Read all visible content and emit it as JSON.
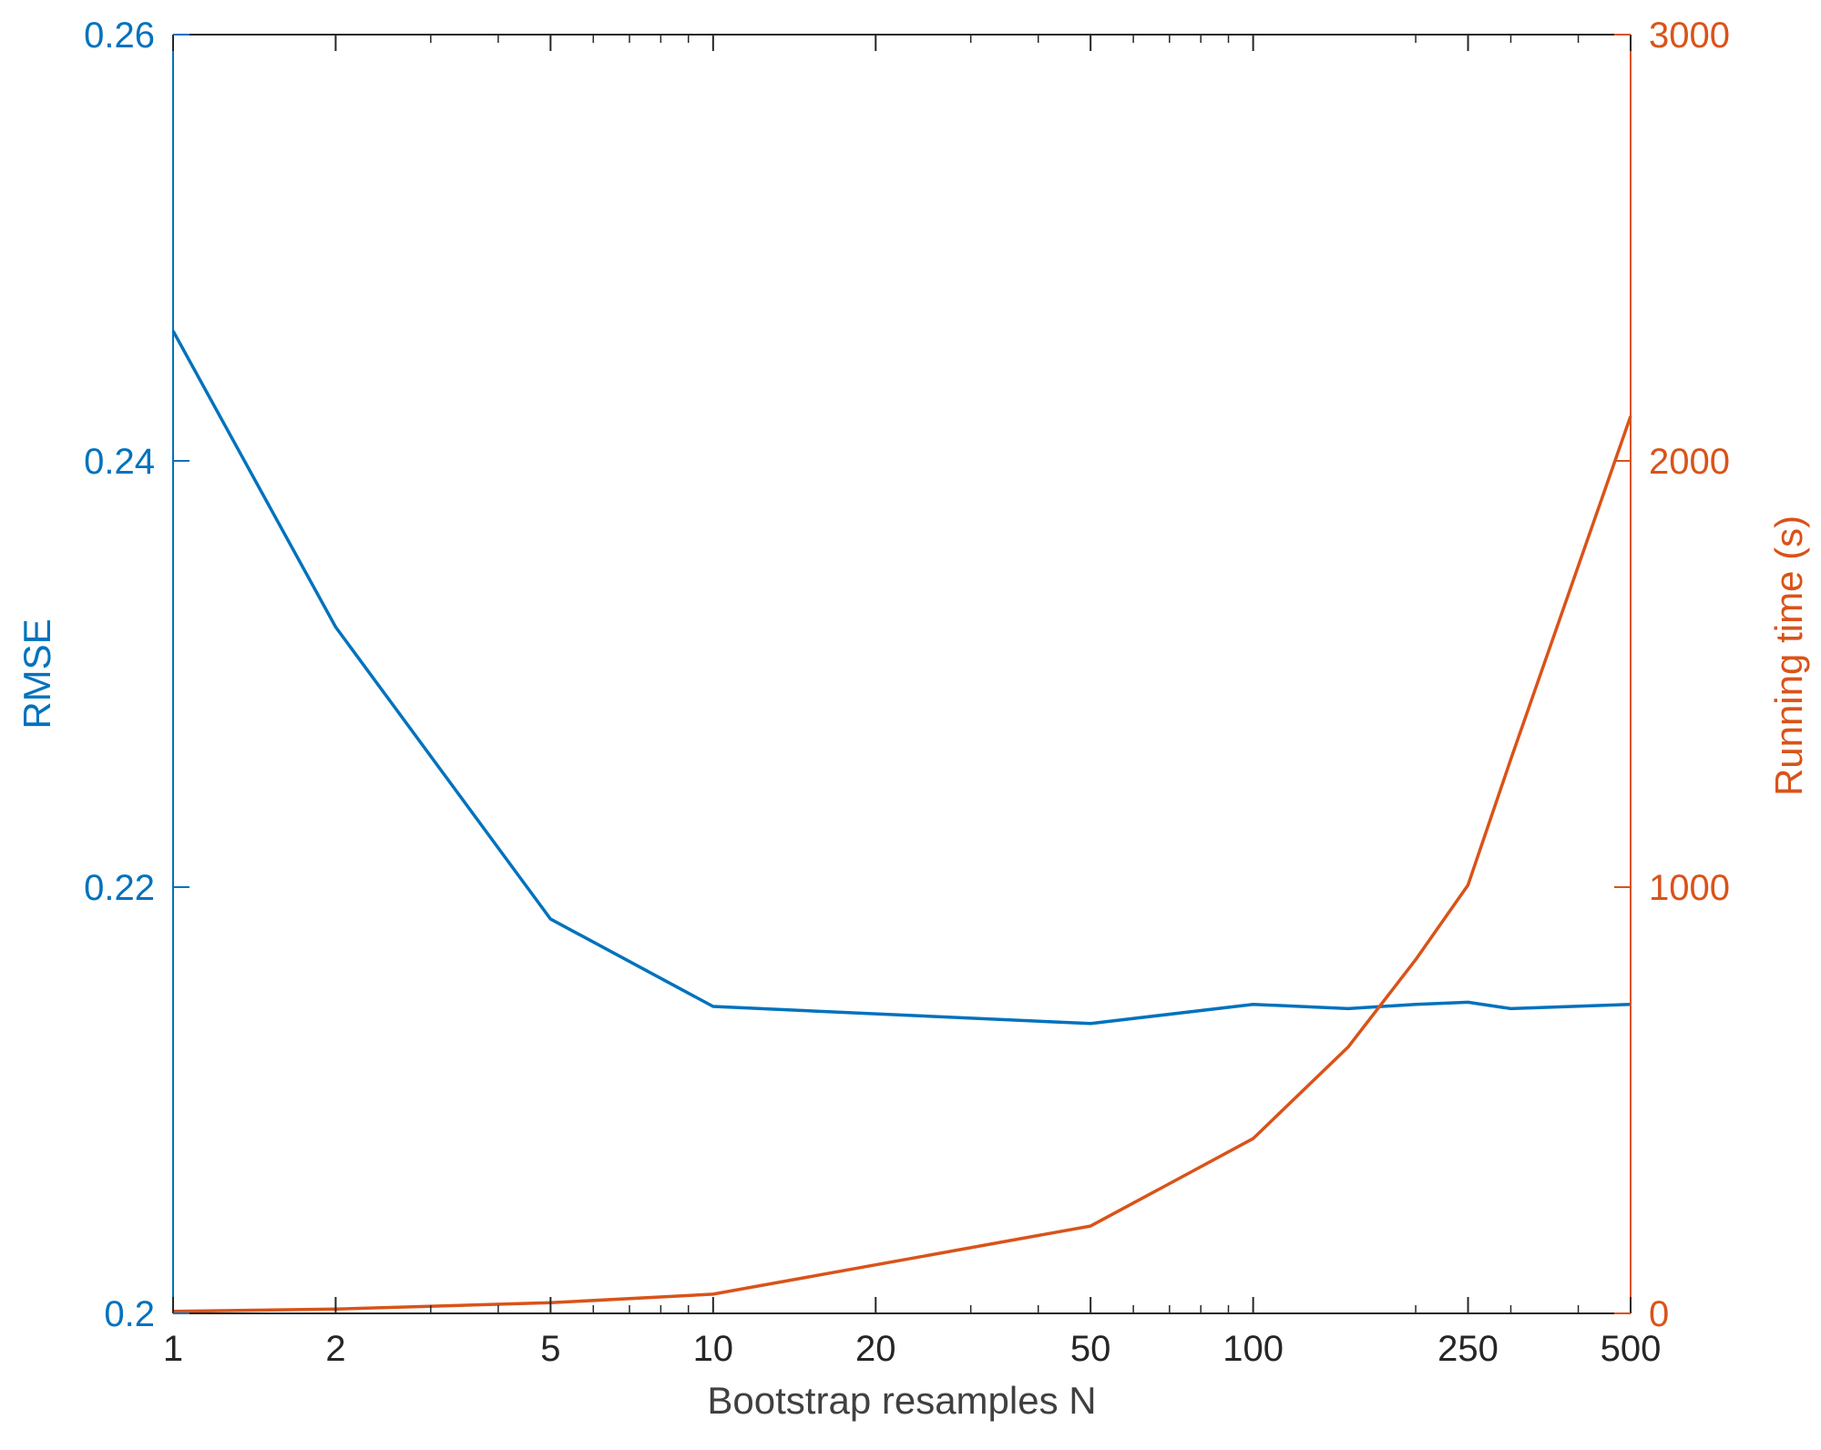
{
  "chart_data": {
    "type": "line",
    "title": "",
    "xlabel": "Bootstrap resamples N",
    "x_scale": "log",
    "xlim": [
      1,
      500
    ],
    "x_ticks": [
      1,
      2,
      5,
      10,
      20,
      50,
      100,
      250,
      500
    ],
    "x_tick_labels": [
      "1",
      "2",
      "5",
      "10",
      "20",
      "50",
      "100",
      "250",
      "500"
    ],
    "y_left": {
      "label": "RMSE",
      "lim": [
        0.2,
        0.26
      ],
      "ticks": [
        0.2,
        0.22,
        0.24,
        0.26
      ],
      "tick_labels": [
        "0.2",
        "0.22",
        "0.24",
        "0.26"
      ],
      "color": "#0072BD"
    },
    "y_right": {
      "label": "Running time (s)",
      "lim": [
        0,
        3000
      ],
      "ticks": [
        0,
        1000,
        2000,
        3000
      ],
      "tick_labels": [
        "0",
        "1000",
        "2000",
        "3000"
      ],
      "color": "#D95319"
    },
    "grid": false,
    "legend": "none",
    "series": [
      {
        "axis": "left",
        "color": "#0072BD",
        "x": [
          1,
          2,
          5,
          10,
          50,
          100,
          150,
          200,
          250,
          300,
          500
        ],
        "y": [
          0.2461,
          0.2322,
          0.2185,
          0.2144,
          0.2136,
          0.2145,
          0.2143,
          0.2145,
          0.2146,
          0.2143,
          0.2145
        ]
      },
      {
        "axis": "right",
        "color": "#D95319",
        "x": [
          1,
          2,
          5,
          10,
          50,
          100,
          150,
          200,
          250,
          300,
          500
        ],
        "y": [
          5,
          10,
          25,
          45,
          205,
          410,
          625,
          830,
          1005,
          1300,
          2105
        ]
      }
    ]
  }
}
